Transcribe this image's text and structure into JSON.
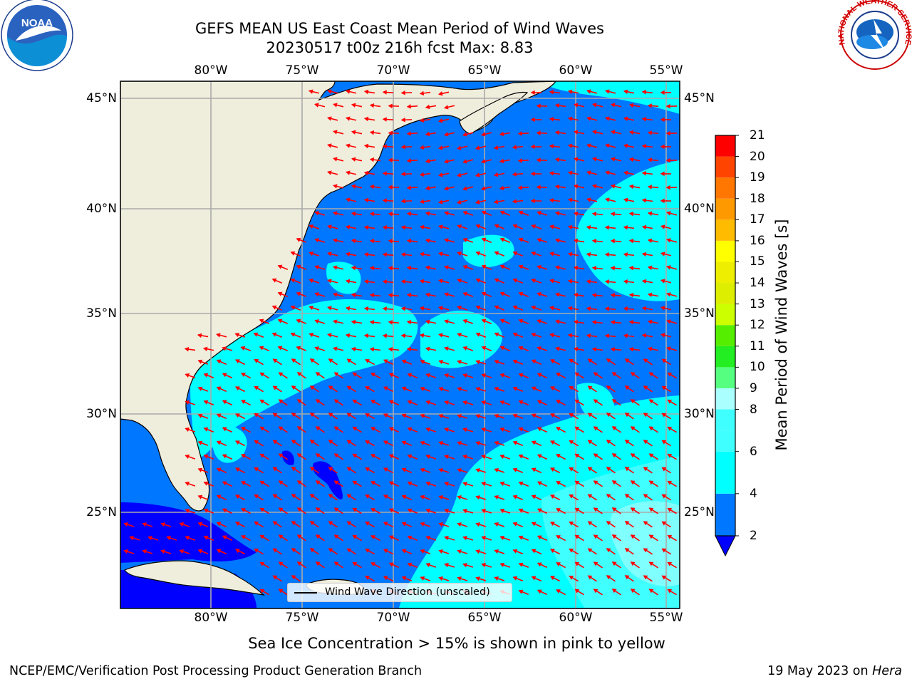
{
  "title": {
    "line1": "GEFS MEAN US East Coast Mean Period of Wind Waves",
    "line2": "20230517 t00z 216h fcst   Max: 8.83"
  },
  "map": {
    "lon_labels": [
      "80°W",
      "75°W",
      "70°W",
      "65°W",
      "60°W",
      "55°W"
    ],
    "lat_labels": [
      "45°N",
      "40°N",
      "35°N",
      "30°N",
      "25°N"
    ],
    "extent": {
      "lon": [
        -85,
        -54.3
      ],
      "lat": [
        20.5,
        45.8
      ]
    },
    "gridlines": true,
    "land_color": "#efeddc",
    "legend_text": "Wind Wave Direction (unscaled)",
    "arrow_color": "#ff0000"
  },
  "colorbar": {
    "label": "Mean Period of Wind Waves [s]",
    "ticks": [
      "21",
      "20",
      "19",
      "18",
      "17",
      "16",
      "15",
      "14",
      "13",
      "12",
      "11",
      "10",
      "9",
      "8",
      "7",
      "6",
      "5",
      "4",
      "3",
      "2"
    ],
    "tick_values": [
      21,
      20,
      19,
      18,
      17,
      16,
      15,
      14,
      13,
      12,
      11,
      10,
      9,
      8,
      7,
      6,
      5,
      4,
      3,
      2
    ],
    "colors": [
      "#0000ff",
      "#0077ff",
      "#00ffff",
      "#40ffff",
      "#80ffff",
      "#aaffff",
      "#55ff7f",
      "#22ee22",
      "#00dd00",
      "#55ee00",
      "#99ee00",
      "#ccff00",
      "#ddee00",
      "#ffff00",
      "#ffee00",
      "#ffbb00",
      "#ff9900",
      "#ff7700",
      "#ff4400",
      "#ff2200",
      "#ff0000"
    ],
    "extend": "min"
  },
  "subtitle": "Sea Ice Concentration > 15% is shown in pink to yellow",
  "footer": {
    "left": "NCEP/EMC/Verification Post Processing Product Generation Branch",
    "date": "19 May 2023 on ",
    "host": "Hera"
  },
  "logos": {
    "noaa_text": "NOAA",
    "nws_text": "NATIONAL WEATHER SERVICE"
  }
}
